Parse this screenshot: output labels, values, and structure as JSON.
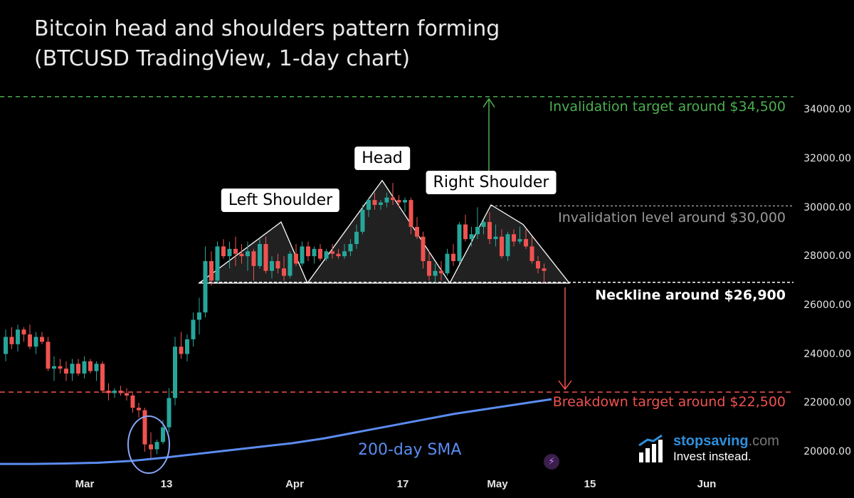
{
  "title": {
    "line1": "Bitcoin head and shoulders pattern forming",
    "line2": "(BTCUSD TradingView, 1-day chart)"
  },
  "colors": {
    "background": "#000000",
    "up": "#26a69a",
    "down": "#ef5350",
    "invalidation": "#4caf50",
    "breakdown": "#f0524f",
    "neckline": "#ffffff",
    "sma": "#5b8cf0"
  },
  "chart_data": {
    "type": "candlestick",
    "y_tick_labels": [
      "34000.00",
      "32000.00",
      "30000.00",
      "28000.00",
      "26000.00",
      "24000.00",
      "22000.00",
      "20000.00"
    ],
    "x_tick_labels": [
      "Mar",
      "13",
      "Apr",
      "17",
      "May",
      "15",
      "Jun"
    ],
    "ylim": [
      19000,
      35800
    ],
    "levels": [
      {
        "name": "invalidation_target",
        "value": 34500,
        "label": "Invalidation target around $34,500"
      },
      {
        "name": "invalidation_level",
        "value": 30000,
        "label": "Invalidation level around $30,000"
      },
      {
        "name": "neckline",
        "value": 26900,
        "label": "Neckline around $26,900"
      },
      {
        "name": "breakdown_target",
        "value": 22500,
        "label": "Breakdown target around $22,500"
      }
    ],
    "annotations": [
      {
        "name": "left_shoulder",
        "label": "Left Shoulder",
        "value": 29400
      },
      {
        "name": "head",
        "label": "Head",
        "value": 31100
      },
      {
        "name": "right_shoulder",
        "label": "Right Shoulder",
        "value": 30100
      }
    ],
    "sma_label": "200-day SMA",
    "sma": [
      19500,
      19500,
      19520,
      19550,
      19620,
      19750,
      19900,
      20050,
      20200,
      20350,
      20550,
      20800,
      21050,
      21300,
      21550,
      21750,
      21950,
      22150
    ],
    "candles": [
      [
        24000,
        25000,
        23700,
        24700
      ],
      [
        24700,
        25100,
        24200,
        24400
      ],
      [
        24400,
        25200,
        24100,
        25000
      ],
      [
        25000,
        25100,
        24500,
        24800
      ],
      [
        24800,
        25200,
        24200,
        24300
      ],
      [
        24300,
        24900,
        24000,
        24700
      ],
      [
        24700,
        24900,
        24400,
        24500
      ],
      [
        24500,
        24700,
        23300,
        23400
      ],
      [
        23400,
        23900,
        22900,
        23500
      ],
      [
        23500,
        23800,
        23200,
        23400
      ],
      [
        23400,
        23700,
        22900,
        23200
      ],
      [
        23200,
        23800,
        22900,
        23600
      ],
      [
        23600,
        23800,
        23100,
        23200
      ],
      [
        23200,
        23900,
        23000,
        23700
      ],
      [
        23700,
        23800,
        23200,
        23300
      ],
      [
        23300,
        23700,
        22900,
        23600
      ],
      [
        23600,
        23700,
        22400,
        22500
      ],
      [
        22500,
        22800,
        22100,
        22400
      ],
      [
        22400,
        22600,
        22200,
        22500
      ],
      [
        22500,
        22700,
        22300,
        22400
      ],
      [
        22400,
        22600,
        22100,
        22300
      ],
      [
        22300,
        22400,
        21600,
        21800
      ],
      [
        21800,
        22000,
        21400,
        21700
      ],
      [
        21700,
        21800,
        20000,
        20300
      ],
      [
        20300,
        20800,
        19700,
        20100
      ],
      [
        20100,
        20500,
        19900,
        20400
      ],
      [
        20400,
        21300,
        20300,
        21000
      ],
      [
        21000,
        22600,
        20800,
        22200
      ],
      [
        22200,
        24700,
        21900,
        24300
      ],
      [
        24300,
        24900,
        23800,
        24000
      ],
      [
        24000,
        24800,
        23700,
        24600
      ],
      [
        24600,
        25700,
        24300,
        25400
      ],
      [
        25400,
        26300,
        24800,
        25700
      ],
      [
        25700,
        28400,
        25500,
        27800
      ],
      [
        27800,
        28200,
        26800,
        27000
      ],
      [
        27000,
        28600,
        26900,
        28400
      ],
      [
        28400,
        28700,
        27900,
        28000
      ],
      [
        28000,
        28600,
        27500,
        28300
      ],
      [
        28300,
        28800,
        27600,
        28100
      ],
      [
        28100,
        28500,
        27700,
        28000
      ],
      [
        28000,
        28600,
        27400,
        28200
      ],
      [
        28200,
        28300,
        27000,
        27600
      ],
      [
        27600,
        28700,
        27500,
        28500
      ],
      [
        28500,
        28800,
        27300,
        27400
      ],
      [
        27400,
        28000,
        27100,
        27800
      ],
      [
        27800,
        28100,
        27300,
        27500
      ],
      [
        27500,
        28000,
        27000,
        27200
      ],
      [
        27200,
        28200,
        27100,
        28100
      ],
      [
        28100,
        28500,
        27600,
        27700
      ],
      [
        27700,
        28600,
        27600,
        28400
      ],
      [
        28400,
        28600,
        27800,
        28000
      ],
      [
        28000,
        28400,
        27700,
        28300
      ],
      [
        28300,
        28500,
        27800,
        27900
      ],
      [
        27900,
        28300,
        27800,
        28200
      ],
      [
        28200,
        28500,
        27900,
        28100
      ],
      [
        28100,
        28300,
        27900,
        28000
      ],
      [
        28000,
        28500,
        27900,
        28200
      ],
      [
        28200,
        28700,
        28000,
        28500
      ],
      [
        28500,
        29300,
        28300,
        29000
      ],
      [
        29000,
        30100,
        28900,
        29900
      ],
      [
        29900,
        30400,
        29600,
        30300
      ],
      [
        30300,
        30600,
        29900,
        30100
      ],
      [
        30100,
        30300,
        29900,
        30200
      ],
      [
        30200,
        30600,
        30000,
        30400
      ],
      [
        30400,
        31000,
        30100,
        30300
      ],
      [
        30300,
        30500,
        30000,
        30200
      ],
      [
        30200,
        30400,
        29800,
        30300
      ],
      [
        30300,
        30400,
        28900,
        29200
      ],
      [
        29200,
        29600,
        28700,
        28800
      ],
      [
        28800,
        29000,
        27500,
        27800
      ],
      [
        27800,
        28200,
        27000,
        27200
      ],
      [
        27200,
        27700,
        26900,
        27400
      ],
      [
        27400,
        27800,
        27000,
        27300
      ],
      [
        27300,
        28300,
        27200,
        28100
      ],
      [
        28100,
        28500,
        27600,
        27800
      ],
      [
        27800,
        29400,
        27700,
        29300
      ],
      [
        29300,
        29700,
        28600,
        28700
      ],
      [
        28700,
        29200,
        28400,
        28900
      ],
      [
        28900,
        30000,
        28700,
        29200
      ],
      [
        29200,
        29500,
        28900,
        29400
      ],
      [
        29400,
        29800,
        28500,
        28700
      ],
      [
        28700,
        29300,
        28400,
        28800
      ],
      [
        28800,
        29100,
        27900,
        28000
      ],
      [
        28000,
        29000,
        27800,
        28900
      ],
      [
        28900,
        29100,
        28400,
        28600
      ],
      [
        28600,
        29200,
        28500,
        28700
      ],
      [
        28700,
        29100,
        28300,
        28400
      ],
      [
        28400,
        28800,
        27700,
        27800
      ],
      [
        27800,
        28000,
        27300,
        27500
      ],
      [
        27500,
        27700,
        26900,
        27400
      ]
    ]
  },
  "watermark": {
    "brand_bold": "stopsaving",
    "brand_suffix": ".com",
    "tagline": "Invest instead."
  },
  "icons": {
    "logo": "bar-chart-arrow-icon",
    "bolt": "lightning-bolt-icon"
  }
}
